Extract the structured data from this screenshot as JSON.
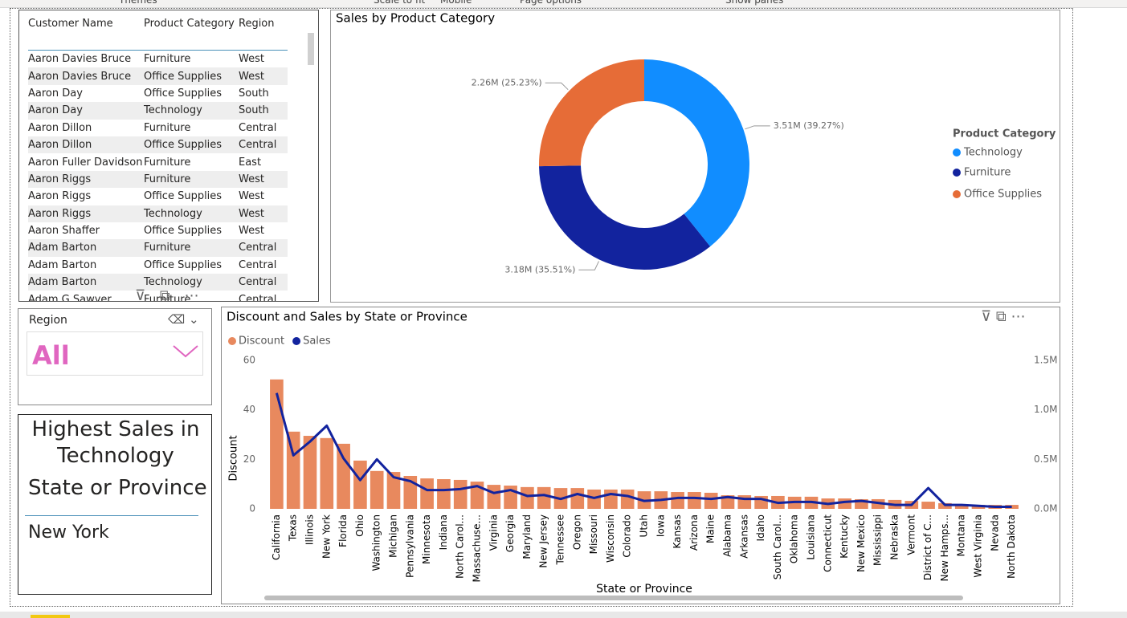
{
  "toolbar": [
    "Themes",
    "Scale to fit",
    "Mobile",
    "Page options",
    "Show panes"
  ],
  "table": {
    "columns": [
      "Customer Name",
      "Product Category",
      "Region"
    ],
    "rows": [
      [
        "Aaron Davies Bruce",
        "Furniture",
        "West"
      ],
      [
        "Aaron Davies Bruce",
        "Office Supplies",
        "West"
      ],
      [
        "Aaron Day",
        "Office Supplies",
        "South"
      ],
      [
        "Aaron Day",
        "Technology",
        "South"
      ],
      [
        "Aaron Dillon",
        "Furniture",
        "Central"
      ],
      [
        "Aaron Dillon",
        "Office Supplies",
        "Central"
      ],
      [
        "Aaron Fuller Davidson",
        "Furniture",
        "East"
      ],
      [
        "Aaron Riggs",
        "Furniture",
        "West"
      ],
      [
        "Aaron Riggs",
        "Office Supplies",
        "West"
      ],
      [
        "Aaron Riggs",
        "Technology",
        "West"
      ],
      [
        "Aaron Shaffer",
        "Office Supplies",
        "West"
      ],
      [
        "Adam Barton",
        "Furniture",
        "Central"
      ],
      [
        "Adam Barton",
        "Office Supplies",
        "Central"
      ],
      [
        "Adam Barton",
        "Technology",
        "Central"
      ],
      [
        "Adam G Sawyer",
        "Furniture",
        "Central"
      ]
    ]
  },
  "slicer": {
    "title": "Region",
    "value": "All"
  },
  "card": {
    "title": "Highest Sales in Technology",
    "label": "State or Province",
    "value": "New York"
  },
  "chart_data": [
    {
      "type": "donut",
      "title": "Sales by Product Category",
      "legend_title": "Product Category",
      "legend": "right",
      "categories": [
        "Technology",
        "Furniture",
        "Office Supplies"
      ],
      "values": [
        3510000,
        3180000,
        2260000
      ],
      "value_labels": [
        "3.51M (39.27%)",
        "3.18M (35.51%)",
        "2.26M (25.23%)"
      ],
      "colors": [
        "#118dff",
        "#12239e",
        "#e66c37"
      ]
    },
    {
      "type": "bar-line",
      "title": "Discount and Sales by State or Province",
      "x_label": "State or Province",
      "y_label": "Discount",
      "legend": "top-left",
      "categories": [
        "California",
        "Texas",
        "Illinois",
        "New York",
        "Florida",
        "Ohio",
        "Washington",
        "Michigan",
        "Pennsylvania",
        "Minnesota",
        "Indiana",
        "North Carol...",
        "Massachuse...",
        "Virginia",
        "Georgia",
        "Maryland",
        "New Jersey",
        "Tennessee",
        "Oregon",
        "Missouri",
        "Wisconsin",
        "Colorado",
        "Utah",
        "Iowa",
        "Kansas",
        "Arizona",
        "Maine",
        "Alabama",
        "Arkansas",
        "Idaho",
        "South Carol...",
        "Oklahoma",
        "Louisiana",
        "Connecticut",
        "Kentucky",
        "New Mexico",
        "Mississippi",
        "Nebraska",
        "Vermont",
        "District of C...",
        "New Hamps...",
        "Montana",
        "West Virginia",
        "Nevada",
        "North Dakota"
      ],
      "series": [
        {
          "name": "Discount",
          "color": "#e8895e",
          "type": "bar",
          "values": [
            52.3,
            31.2,
            29.5,
            28.6,
            26.3,
            19.5,
            15.3,
            14.9,
            13.3,
            12.3,
            12,
            11.7,
            11,
            9.7,
            9.4,
            8.8,
            8.8,
            8.4,
            8.4,
            7.8,
            7.8,
            7.8,
            7.1,
            7.1,
            6.8,
            6.8,
            6.5,
            5.5,
            5.5,
            5.2,
            5.2,
            4.9,
            4.9,
            4.2,
            4.2,
            3.9,
            3.9,
            3.6,
            3.2,
            2.9,
            2.3,
            1.9,
            1.6,
            1.6,
            1.6
          ]
        },
        {
          "name": "Sales",
          "color": "#12239e",
          "type": "line",
          "axis": "y2",
          "values": [
            1170000,
            540000,
            680000,
            840000,
            510000,
            290000,
            500000,
            320000,
            280000,
            190000,
            190000,
            200000,
            230000,
            160000,
            190000,
            130000,
            140000,
            100000,
            150000,
            110000,
            150000,
            130000,
            80000,
            90000,
            110000,
            110000,
            100000,
            120000,
            100000,
            100000,
            60000,
            70000,
            70000,
            50000,
            70000,
            80000,
            60000,
            40000,
            40000,
            210000,
            40000,
            40000,
            30000,
            20000,
            20000
          ]
        }
      ],
      "ylim": [
        0,
        60
      ],
      "yticks": [
        0,
        20,
        40,
        60
      ],
      "y2lim": [
        0,
        1500000
      ],
      "y2ticks": [
        {
          "value": 0,
          "label": "0.0M"
        },
        {
          "value": 500000,
          "label": "0.5M"
        },
        {
          "value": 1000000,
          "label": "1.0M"
        },
        {
          "value": 1500000,
          "label": "1.5M"
        }
      ]
    }
  ]
}
